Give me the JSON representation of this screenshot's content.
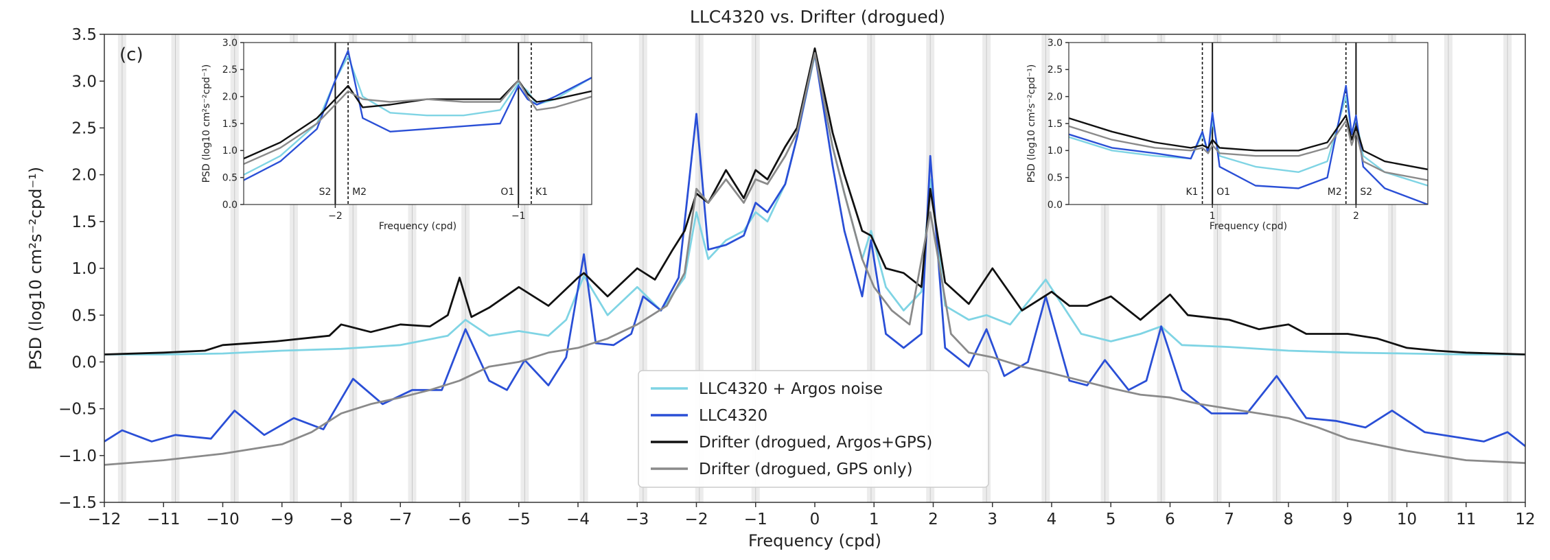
{
  "chart_data": [
    {
      "id": "main",
      "type": "line",
      "title": "LLC4320 vs. Drifter (drogued)",
      "panel_label": "(c)",
      "xlabel": "Frequency (cpd)",
      "ylabel": "PSD (log10 cm²s⁻²cpd⁻¹)",
      "xlim": [
        -12,
        12
      ],
      "ylim": [
        -1.5,
        3.5
      ],
      "xticks": [
        -12,
        -11,
        -10,
        -9,
        -8,
        -7,
        -6,
        -5,
        -4,
        -3,
        -2,
        -1,
        0,
        1,
        2,
        3,
        4,
        5,
        6,
        7,
        8,
        9,
        10,
        11,
        12
      ],
      "yticks": [
        -1.5,
        -1.0,
        -0.5,
        0.0,
        0.5,
        1.0,
        1.5,
        2.0,
        2.5,
        3.0,
        3.5
      ],
      "ytick_labels": [
        "−1.5",
        "−1.0",
        "−0.5",
        "0.0",
        "0.5",
        "1.0",
        "1.5",
        "2.0",
        "2.5",
        "3.0",
        "3.5"
      ],
      "xtick_labels": [
        "−12",
        "−11",
        "−10",
        "−9",
        "−8",
        "−7",
        "−6",
        "−5",
        "−4",
        "−3",
        "−2",
        "−1",
        "0",
        "1",
        "2",
        "3",
        "4",
        "5",
        "6",
        "7",
        "8",
        "9",
        "10",
        "11",
        "12"
      ],
      "tidal_bands": [
        -11.7,
        -10.8,
        -9.8,
        -8.8,
        -7.8,
        -6.8,
        -5.9,
        -4.9,
        -3.9,
        -2.9,
        -1.95,
        -1.0,
        0.95,
        1.95,
        2.9,
        3.9,
        4.9,
        5.85,
        6.8,
        7.8,
        8.8,
        9.75,
        10.7,
        11.7
      ],
      "legend_position": "lower-center",
      "series": [
        {
          "name": "LLC4320 + Argos noise",
          "color": "#7fd4e4",
          "x": [
            -12,
            -11,
            -10,
            -9,
            -8,
            -7,
            -6.2,
            -5.9,
            -5.5,
            -5,
            -4.5,
            -4.2,
            -3.9,
            -3.5,
            -3.0,
            -2.6,
            -2.2,
            -2.0,
            -1.8,
            -1.5,
            -1.2,
            -1.0,
            -0.8,
            -0.5,
            -0.3,
            0,
            0.3,
            0.5,
            0.8,
            0.95,
            1.2,
            1.5,
            1.8,
            1.95,
            2.2,
            2.6,
            2.9,
            3.3,
            3.9,
            4.5,
            5,
            5.5,
            5.85,
            6.2,
            7,
            8,
            9,
            10,
            11,
            12
          ],
          "y": [
            0.08,
            0.08,
            0.09,
            0.12,
            0.14,
            0.18,
            0.28,
            0.45,
            0.28,
            0.33,
            0.28,
            0.45,
            0.92,
            0.5,
            0.8,
            0.55,
            0.9,
            1.6,
            1.1,
            1.3,
            1.4,
            1.6,
            1.5,
            1.9,
            2.4,
            3.28,
            2.3,
            1.8,
            1.1,
            1.4,
            0.8,
            0.55,
            0.75,
            1.95,
            0.6,
            0.45,
            0.5,
            0.4,
            0.88,
            0.3,
            0.22,
            0.3,
            0.38,
            0.18,
            0.16,
            0.12,
            0.1,
            0.09,
            0.08,
            0.08
          ]
        },
        {
          "name": "LLC4320",
          "color": "#2a4fd6",
          "x": [
            -12,
            -11.7,
            -11.2,
            -10.8,
            -10.2,
            -9.8,
            -9.3,
            -8.8,
            -8.3,
            -7.8,
            -7.3,
            -6.8,
            -6.3,
            -5.9,
            -5.5,
            -5.2,
            -4.9,
            -4.5,
            -4.2,
            -3.9,
            -3.7,
            -3.4,
            -3.1,
            -2.9,
            -2.6,
            -2.3,
            -2.0,
            -1.8,
            -1.5,
            -1.2,
            -1.0,
            -0.8,
            -0.5,
            -0.3,
            0,
            0.3,
            0.5,
            0.8,
            0.95,
            1.2,
            1.5,
            1.8,
            1.95,
            2.2,
            2.6,
            2.9,
            3.2,
            3.6,
            3.9,
            4.3,
            4.6,
            4.9,
            5.3,
            5.6,
            5.85,
            6.2,
            6.7,
            7.3,
            7.8,
            8.3,
            8.8,
            9.3,
            9.75,
            10.3,
            10.8,
            11.3,
            11.7,
            12
          ],
          "y": [
            -0.85,
            -0.73,
            -0.85,
            -0.78,
            -0.82,
            -0.52,
            -0.78,
            -0.6,
            -0.72,
            -0.18,
            -0.45,
            -0.3,
            -0.3,
            0.35,
            -0.2,
            -0.3,
            0.02,
            -0.25,
            0.05,
            1.15,
            0.2,
            0.18,
            0.3,
            0.7,
            0.55,
            0.9,
            2.65,
            1.2,
            1.25,
            1.35,
            1.7,
            1.6,
            1.9,
            2.4,
            3.3,
            2.1,
            1.4,
            0.7,
            1.3,
            0.3,
            0.15,
            0.3,
            2.2,
            0.15,
            -0.05,
            0.35,
            -0.15,
            0.0,
            0.7,
            -0.2,
            -0.25,
            0.02,
            -0.3,
            -0.2,
            0.38,
            -0.3,
            -0.55,
            -0.55,
            -0.15,
            -0.6,
            -0.63,
            -0.7,
            -0.52,
            -0.75,
            -0.8,
            -0.85,
            -0.75,
            -0.9
          ]
        },
        {
          "name": "Drifter (drogued, Argos+GPS)",
          "color": "#111111",
          "x": [
            -12,
            -11,
            -10.3,
            -10,
            -9.1,
            -8.2,
            -8.0,
            -7.5,
            -7.0,
            -6.5,
            -6.2,
            -6.0,
            -5.8,
            -5.5,
            -5.0,
            -4.5,
            -4.0,
            -3.9,
            -3.5,
            -3.0,
            -2.7,
            -2.4,
            -2.2,
            -2.0,
            -1.8,
            -1.5,
            -1.2,
            -1.0,
            -0.8,
            -0.5,
            -0.3,
            0,
            0.3,
            0.5,
            0.8,
            0.95,
            1.2,
            1.5,
            1.8,
            1.95,
            2.2,
            2.6,
            3.0,
            3.5,
            4.0,
            4.3,
            4.6,
            5.0,
            5.5,
            6.0,
            6.3,
            7.0,
            7.5,
            8.0,
            8.3,
            9.0,
            9.5,
            10.0,
            10.5,
            11.0,
            12
          ],
          "y": [
            0.08,
            0.1,
            0.12,
            0.18,
            0.22,
            0.28,
            0.4,
            0.32,
            0.4,
            0.38,
            0.5,
            0.9,
            0.48,
            0.58,
            0.8,
            0.6,
            0.9,
            0.95,
            0.7,
            1.0,
            0.88,
            1.2,
            1.4,
            1.8,
            1.7,
            2.05,
            1.75,
            2.05,
            1.95,
            2.3,
            2.5,
            3.35,
            2.45,
            2.0,
            1.4,
            1.35,
            1.0,
            0.95,
            0.8,
            1.85,
            0.85,
            0.62,
            1.0,
            0.55,
            0.75,
            0.6,
            0.6,
            0.7,
            0.45,
            0.72,
            0.5,
            0.45,
            0.35,
            0.4,
            0.3,
            0.3,
            0.25,
            0.15,
            0.12,
            0.1,
            0.08
          ]
        },
        {
          "name": "Drifter (drogued, GPS only)",
          "color": "#8a8a8a",
          "x": [
            -12,
            -11,
            -10,
            -9,
            -8.5,
            -8,
            -7.5,
            -7,
            -6.5,
            -6,
            -5.5,
            -5,
            -4.5,
            -4,
            -3.5,
            -3,
            -2.5,
            -2.2,
            -2.0,
            -1.8,
            -1.5,
            -1.2,
            -1.0,
            -0.8,
            -0.5,
            -0.3,
            0,
            0.3,
            0.5,
            0.8,
            1.0,
            1.3,
            1.6,
            1.95,
            2.3,
            2.6,
            3.0,
            3.5,
            4.0,
            4.5,
            5.0,
            5.5,
            6.0,
            6.5,
            7.0,
            7.5,
            8.0,
            8.5,
            9.0,
            10.0,
            11.0,
            12
          ],
          "y": [
            -1.1,
            -1.05,
            -0.98,
            -0.88,
            -0.75,
            -0.55,
            -0.45,
            -0.38,
            -0.3,
            -0.2,
            -0.05,
            0.0,
            0.1,
            0.15,
            0.25,
            0.4,
            0.6,
            0.95,
            1.85,
            1.7,
            1.95,
            1.7,
            1.95,
            1.9,
            2.2,
            2.45,
            3.3,
            2.3,
            1.8,
            1.1,
            0.8,
            0.55,
            0.4,
            1.6,
            0.3,
            0.1,
            0.05,
            -0.05,
            -0.12,
            -0.2,
            -0.28,
            -0.35,
            -0.38,
            -0.45,
            -0.5,
            -0.55,
            -0.6,
            -0.7,
            -0.82,
            -0.95,
            -1.05,
            -1.08
          ]
        }
      ]
    },
    {
      "id": "inset-left",
      "type": "line",
      "xlabel": "Frequency (cpd)",
      "ylabel": "PSD (log10 cm²s⁻²cpd⁻¹)",
      "xlim": [
        -2.5,
        -0.6
      ],
      "ylim": [
        0.0,
        3.0
      ],
      "xticks": [
        -2,
        -1
      ],
      "xtick_labels": [
        "−2",
        "−1"
      ],
      "yticks": [
        0.0,
        0.5,
        1.0,
        1.5,
        2.0,
        2.5,
        3.0
      ],
      "ytick_labels": [
        "0.0",
        "0.5",
        "1.0",
        "1.5",
        "2.0",
        "2.5",
        "3.0"
      ],
      "solid_lines": [
        -2.0,
        -1.0
      ],
      "dashed_lines": [
        -1.93,
        -0.93
      ],
      "line_labels": [
        "S2",
        "M2",
        "O1",
        "K1"
      ],
      "series": [
        {
          "name": "LLC4320 + Argos noise",
          "color": "#7fd4e4",
          "x": [
            -2.5,
            -2.3,
            -2.1,
            -2.0,
            -1.93,
            -1.85,
            -1.7,
            -1.5,
            -1.3,
            -1.1,
            -1.0,
            -0.95,
            -0.9,
            -0.8,
            -0.6
          ],
          "y": [
            0.55,
            0.9,
            1.5,
            2.3,
            2.75,
            2.0,
            1.7,
            1.65,
            1.65,
            1.75,
            2.25,
            2.1,
            1.85,
            1.95,
            2.35
          ]
        },
        {
          "name": "LLC4320",
          "color": "#2a4fd6",
          "x": [
            -2.5,
            -2.3,
            -2.1,
            -2.0,
            -1.93,
            -1.85,
            -1.7,
            -1.5,
            -1.3,
            -1.1,
            -1.0,
            -0.95,
            -0.9,
            -0.8,
            -0.6
          ],
          "y": [
            0.45,
            0.8,
            1.4,
            2.3,
            2.85,
            1.6,
            1.35,
            1.4,
            1.45,
            1.5,
            2.2,
            1.95,
            1.85,
            2.0,
            2.35
          ]
        },
        {
          "name": "Drifter (drogued, Argos+GPS)",
          "color": "#111111",
          "x": [
            -2.5,
            -2.3,
            -2.1,
            -2.0,
            -1.93,
            -1.85,
            -1.7,
            -1.5,
            -1.3,
            -1.1,
            -1.0,
            -0.95,
            -0.9,
            -0.8,
            -0.6
          ],
          "y": [
            0.85,
            1.15,
            1.6,
            1.95,
            2.2,
            1.8,
            1.85,
            1.95,
            1.95,
            1.95,
            2.3,
            2.05,
            1.9,
            1.95,
            2.1
          ]
        },
        {
          "name": "Drifter (drogued, GPS only)",
          "color": "#8a8a8a",
          "x": [
            -2.5,
            -2.3,
            -2.1,
            -2.0,
            -1.93,
            -1.85,
            -1.7,
            -1.5,
            -1.3,
            -1.1,
            -1.0,
            -0.95,
            -0.9,
            -0.8,
            -0.6
          ],
          "y": [
            0.75,
            1.05,
            1.5,
            1.85,
            2.1,
            1.95,
            1.9,
            1.95,
            1.9,
            1.9,
            2.3,
            2.0,
            1.75,
            1.8,
            2.0
          ]
        }
      ]
    },
    {
      "id": "inset-right",
      "type": "line",
      "xlabel": "Frequency (cpd)",
      "ylabel": "PSD (log10 cm²s⁻²cpd⁻¹)",
      "xlim": [
        0.0,
        2.5
      ],
      "ylim": [
        0.0,
        3.0
      ],
      "xticks": [
        1,
        2
      ],
      "xtick_labels": [
        "1",
        "2"
      ],
      "yticks": [
        0.0,
        0.5,
        1.0,
        1.5,
        2.0,
        2.5,
        3.0
      ],
      "ytick_labels": [
        "0.0",
        "0.5",
        "1.0",
        "1.5",
        "2.0",
        "2.5",
        "3.0"
      ],
      "solid_lines": [
        1.0,
        2.0
      ],
      "dashed_lines": [
        0.93,
        1.93
      ],
      "line_labels": [
        "K1",
        "O1",
        "M2",
        "S2"
      ],
      "series": [
        {
          "name": "LLC4320 + Argos noise",
          "color": "#7fd4e4",
          "x": [
            0.0,
            0.3,
            0.6,
            0.85,
            0.93,
            0.97,
            1.0,
            1.05,
            1.3,
            1.6,
            1.8,
            1.93,
            1.97,
            2.0,
            2.05,
            2.2,
            2.5
          ],
          "y": [
            1.25,
            1.0,
            0.9,
            0.85,
            1.3,
            0.95,
            1.55,
            0.9,
            0.7,
            0.6,
            0.8,
            2.0,
            1.3,
            1.6,
            0.9,
            0.6,
            0.35
          ]
        },
        {
          "name": "LLC4320",
          "color": "#2a4fd6",
          "x": [
            0.0,
            0.3,
            0.6,
            0.85,
            0.93,
            0.97,
            1.0,
            1.05,
            1.3,
            1.6,
            1.8,
            1.93,
            1.97,
            2.0,
            2.05,
            2.2,
            2.5
          ],
          "y": [
            1.3,
            1.05,
            0.95,
            0.85,
            1.35,
            0.95,
            1.7,
            0.7,
            0.35,
            0.3,
            0.5,
            2.2,
            1.3,
            1.65,
            0.7,
            0.3,
            0.0
          ]
        },
        {
          "name": "Drifter (drogued, Argos+GPS)",
          "color": "#111111",
          "x": [
            0.0,
            0.3,
            0.6,
            0.85,
            0.93,
            0.97,
            1.0,
            1.05,
            1.3,
            1.6,
            1.8,
            1.93,
            1.97,
            2.0,
            2.05,
            2.2,
            2.5
          ],
          "y": [
            1.6,
            1.35,
            1.15,
            1.05,
            1.1,
            1.05,
            1.2,
            1.05,
            1.0,
            1.0,
            1.15,
            1.65,
            1.2,
            1.45,
            1.0,
            0.8,
            0.65
          ]
        },
        {
          "name": "Drifter (drogued, GPS only)",
          "color": "#8a8a8a",
          "x": [
            0.0,
            0.3,
            0.6,
            0.85,
            0.93,
            0.97,
            1.0,
            1.05,
            1.3,
            1.6,
            1.8,
            1.93,
            1.97,
            2.0,
            2.05,
            2.2,
            2.5
          ],
          "y": [
            1.45,
            1.2,
            1.05,
            1.0,
            1.05,
            0.95,
            1.1,
            0.95,
            0.9,
            0.9,
            1.05,
            1.55,
            1.1,
            1.35,
            0.8,
            0.6,
            0.45
          ]
        }
      ]
    }
  ]
}
